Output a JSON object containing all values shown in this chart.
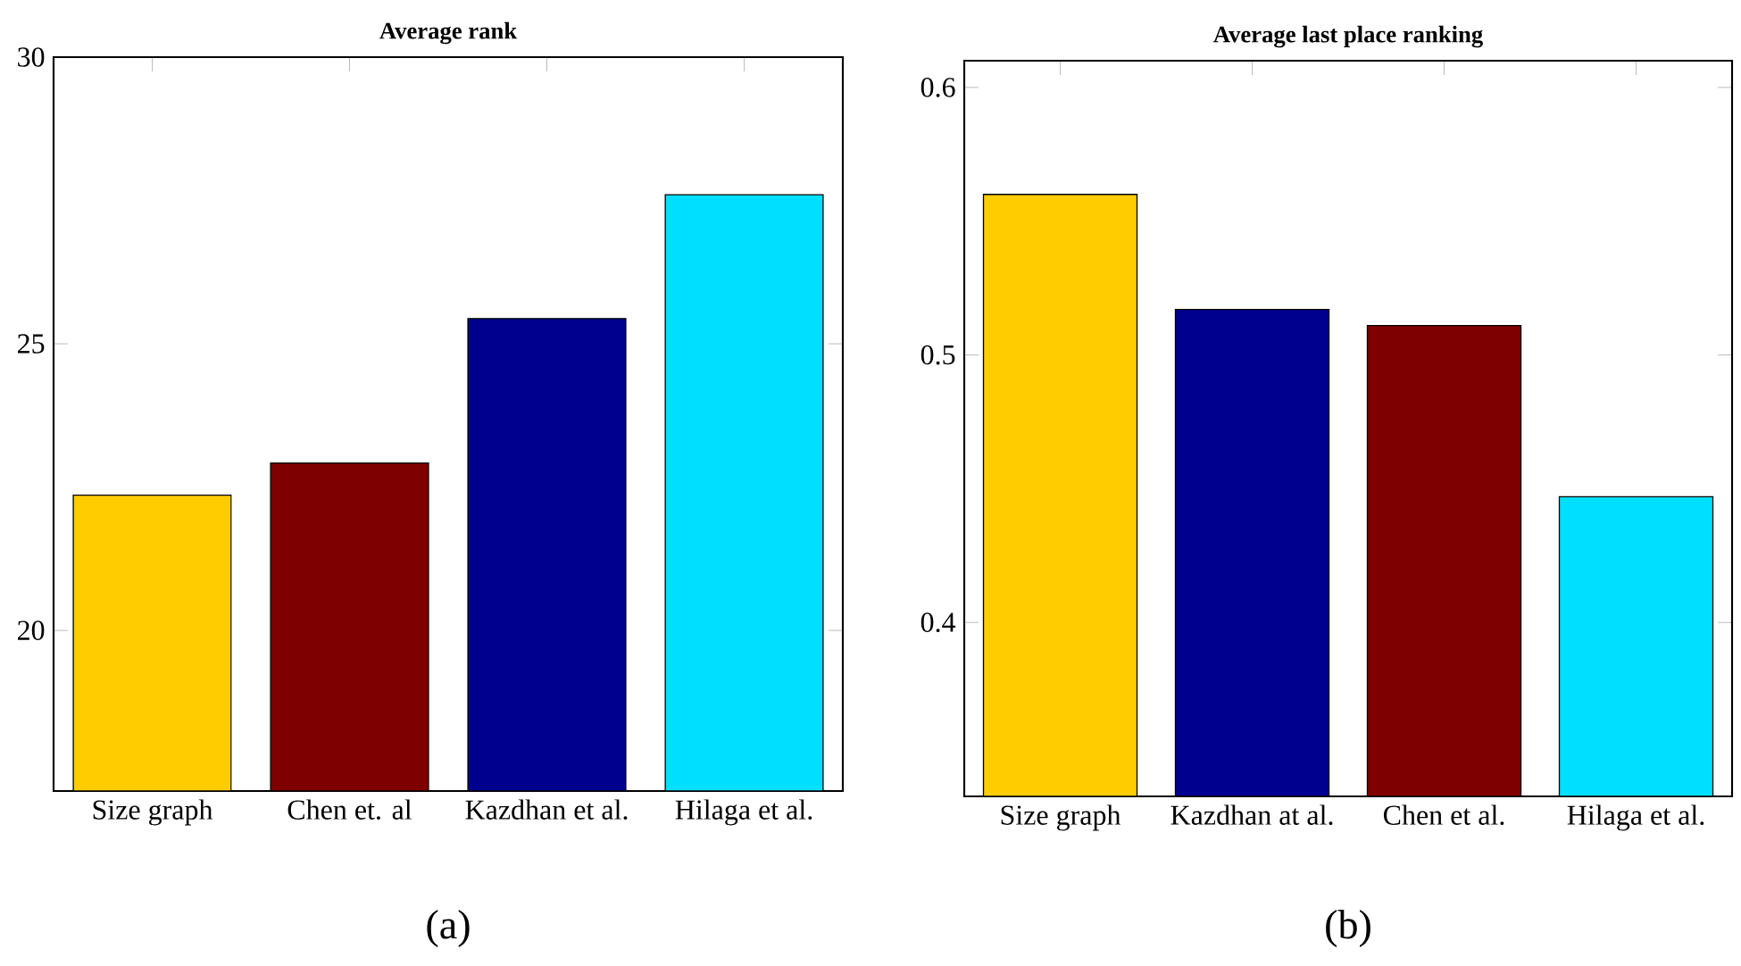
{
  "chart_data": [
    {
      "type": "bar",
      "title": "Average rank",
      "categories": [
        "Size graph",
        "Chen et. al",
        "Kazdhan et al.",
        "Hilaga et al."
      ],
      "values": [
        22.36,
        22.92,
        25.44,
        27.6
      ],
      "colors": [
        "#ffcc00",
        "#7f0000",
        "#00008f",
        "#00dfff"
      ],
      "ylim": [
        17.2,
        30
      ],
      "yticks": [
        20,
        25,
        30
      ],
      "annotations": [
        "(a)"
      ]
    },
    {
      "type": "bar",
      "title": "Average last place ranking",
      "categories": [
        "Size graph",
        "Kazdhan at al.",
        "Chen et al.",
        "Hilaga et al."
      ],
      "values": [
        0.56,
        0.517,
        0.511,
        0.447
      ],
      "colors": [
        "#ffcc00",
        "#00008f",
        "#7f0000",
        "#00dfff"
      ],
      "ylim": [
        0.335,
        0.61
      ],
      "yticks": [
        0.4,
        0.5,
        0.6
      ],
      "annotations": [
        "(b)"
      ]
    }
  ]
}
